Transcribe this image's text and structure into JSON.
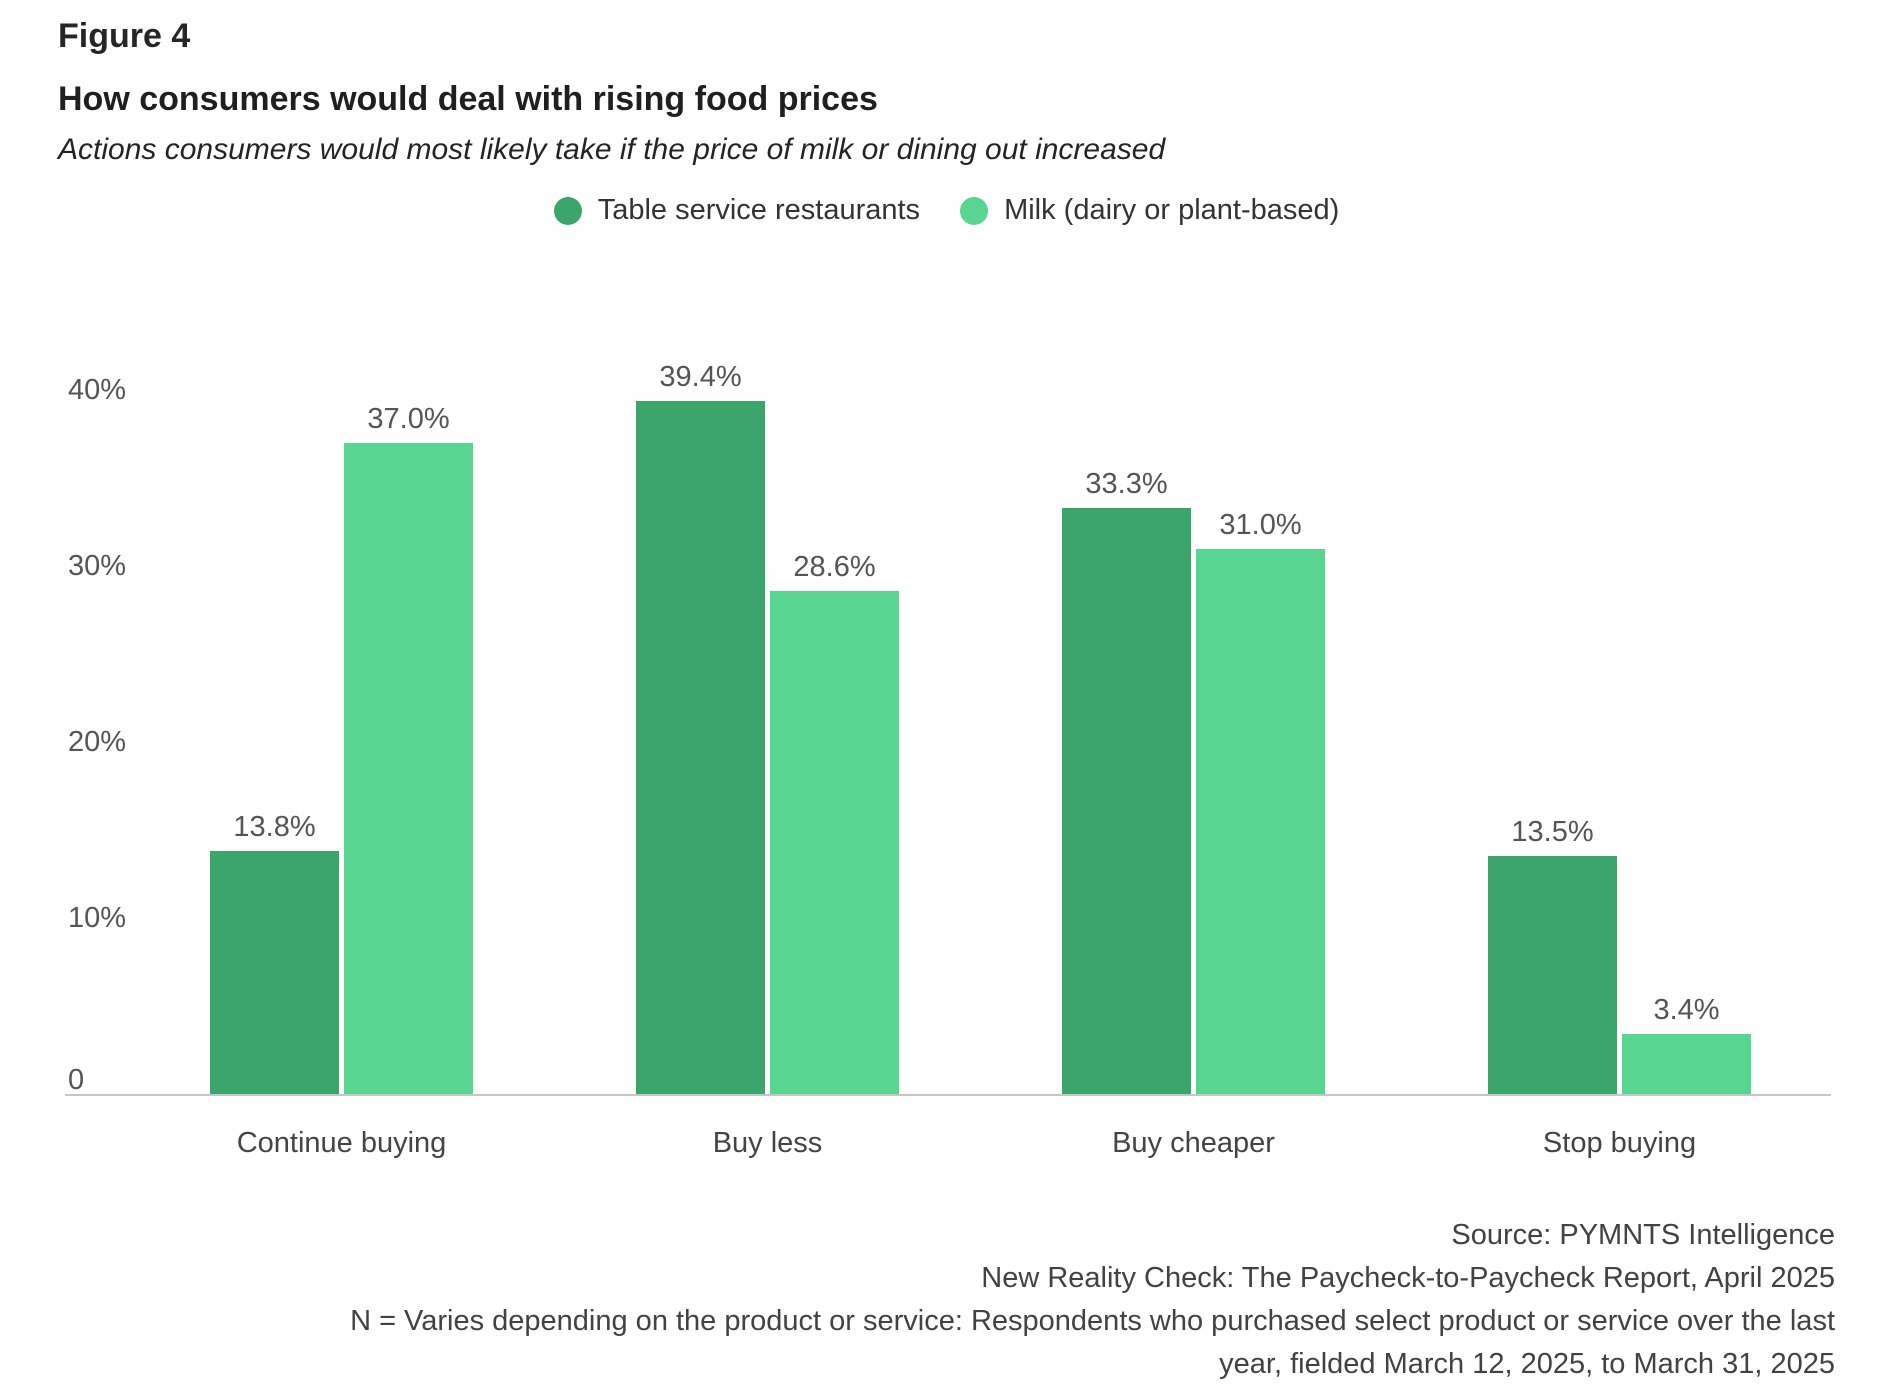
{
  "header": {
    "figure_label": "Figure 4",
    "title": "How consumers would deal with rising food prices",
    "subtitle": "Actions consumers would most likely take if the price of milk or dining out increased"
  },
  "chart_data": {
    "type": "bar",
    "title": "How consumers would deal with rising food prices",
    "subtitle": "Actions consumers would most likely take if the price of milk or dining out increased",
    "categories": [
      "Continue buying",
      "Buy less",
      "Buy cheaper",
      "Stop buying"
    ],
    "series": [
      {
        "name": "Table service restaurants",
        "color": "#3ca56c",
        "values": [
          13.8,
          39.4,
          33.3,
          13.5
        ]
      },
      {
        "name": "Milk (dairy or plant-based)",
        "color": "#58d591",
        "values": [
          37.0,
          28.6,
          31.0,
          3.4
        ]
      }
    ],
    "value_label_format": "percent_one_decimal",
    "xlabel": "",
    "ylabel": "",
    "ylim": [
      0,
      42
    ],
    "y_ticks": [
      {
        "value": 40,
        "label": "40%"
      },
      {
        "value": 30,
        "label": "30%"
      },
      {
        "value": 20,
        "label": "20%"
      },
      {
        "value": 10,
        "label": "10%"
      },
      {
        "value": 0,
        "label": "0"
      }
    ],
    "grid": false,
    "legend_position": "top-center",
    "colors": {
      "axis_line": "#c6c6c6",
      "tick_label": "#555555",
      "value_label": "#555555",
      "category_label": "#444444"
    }
  },
  "footer": {
    "lines": [
      "Source: PYMNTS Intelligence",
      "New Reality Check: The Paycheck-to-Paycheck Report, April 2025",
      "N = Varies depending on the product or service: Respondents who purchased select product or service over the last",
      "year, fielded March 12, 2025, to March 31, 2025"
    ]
  }
}
